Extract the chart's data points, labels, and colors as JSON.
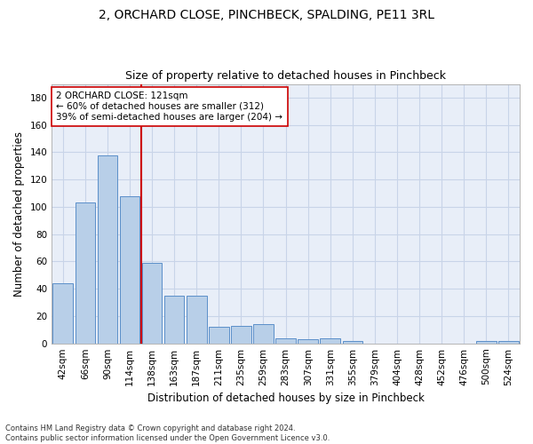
{
  "title1": "2, ORCHARD CLOSE, PINCHBECK, SPALDING, PE11 3RL",
  "title2": "Size of property relative to detached houses in Pinchbeck",
  "xlabel": "Distribution of detached houses by size in Pinchbeck",
  "ylabel": "Number of detached properties",
  "categories": [
    "42sqm",
    "66sqm",
    "90sqm",
    "114sqm",
    "138sqm",
    "163sqm",
    "187sqm",
    "211sqm",
    "235sqm",
    "259sqm",
    "283sqm",
    "307sqm",
    "331sqm",
    "355sqm",
    "379sqm",
    "404sqm",
    "428sqm",
    "452sqm",
    "476sqm",
    "500sqm",
    "524sqm"
  ],
  "values": [
    44,
    103,
    138,
    108,
    59,
    35,
    35,
    12,
    13,
    14,
    4,
    3,
    4,
    2,
    0,
    0,
    0,
    0,
    0,
    2,
    2
  ],
  "bar_color": "#b8cfe8",
  "bar_edge_color": "#5b8fc9",
  "grid_color": "#c8d4e8",
  "bg_color": "#e8eef8",
  "annotation_line_color": "#cc0000",
  "annotation_box_color": "#cc0000",
  "annotation_text": "2 ORCHARD CLOSE: 121sqm\n← 60% of detached houses are smaller (312)\n39% of semi-detached houses are larger (204) →",
  "ylim": [
    0,
    190
  ],
  "yticks": [
    0,
    20,
    40,
    60,
    80,
    100,
    120,
    140,
    160,
    180
  ],
  "vline_x": 3.5,
  "footnote": "Contains HM Land Registry data © Crown copyright and database right 2024.\nContains public sector information licensed under the Open Government Licence v3.0.",
  "title1_fontsize": 10,
  "title2_fontsize": 9,
  "xlabel_fontsize": 8.5,
  "ylabel_fontsize": 8.5,
  "tick_fontsize": 7.5,
  "annot_fontsize": 7.5,
  "footnote_fontsize": 6.0
}
